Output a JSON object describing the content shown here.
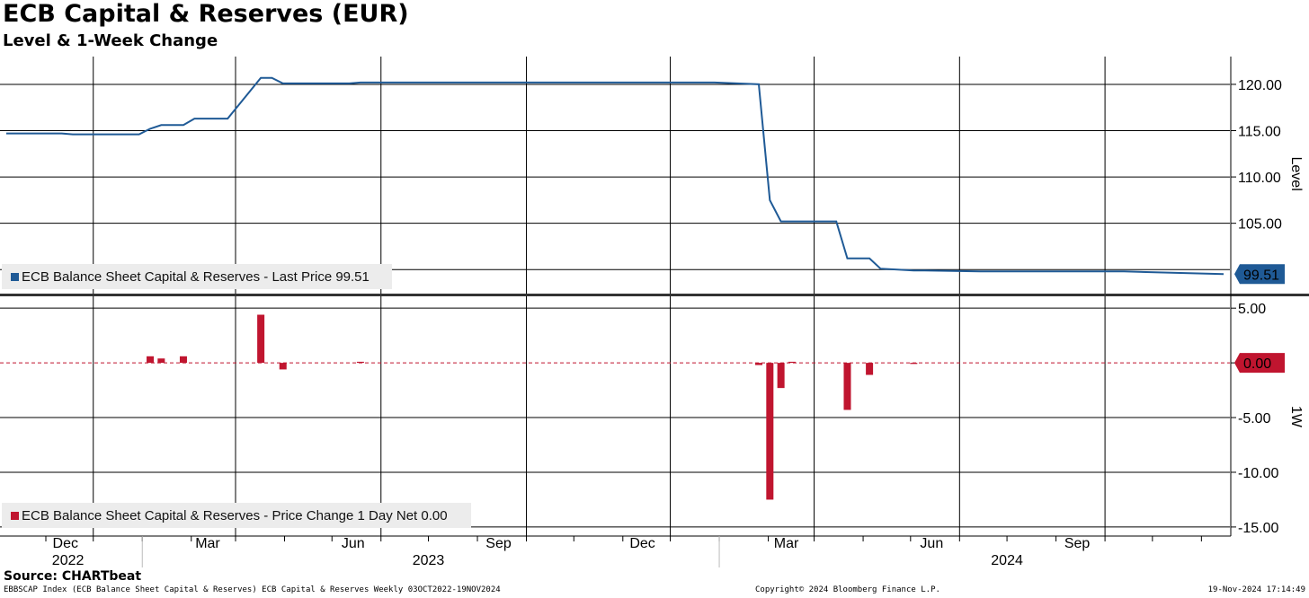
{
  "title": "ECB Capital & Reserves (EUR)",
  "subtitle": "Level & 1-Week Change",
  "source": "Source: CHARTbeat",
  "footer": {
    "left": "EBBSCAP Index (ECB Balance Sheet Capital & Reserves) ECB Capital & Reserves  Weekly 03OCT2022-19NOV2024",
    "center": "Copyright© 2024 Bloomberg Finance L.P.",
    "right": "19-Nov-2024 17:14:49"
  },
  "colors": {
    "level": "#1f5a96",
    "change": "#c0152f",
    "zero_line": "#c0152f"
  },
  "chart_data": [
    {
      "type": "line",
      "panel": "top",
      "ylabel": "Level",
      "ylim": [
        97.5,
        123
      ],
      "yticks": [
        105,
        110,
        115,
        120
      ],
      "ytick_labels": [
        "105.00",
        "110.00",
        "115.00",
        "120.00"
      ],
      "last_value_label": "99.51",
      "legend": "ECB Balance Sheet Capital & Reserves - Last Price 99.51",
      "series": [
        {
          "name": "ECB Balance Sheet Capital & Reserves - Last Price",
          "x": [
            "2022-10-07",
            "2022-11-11",
            "2022-11-18",
            "2022-12-30",
            "2023-01-06",
            "2023-01-13",
            "2023-01-27",
            "2023-02-03",
            "2023-02-17",
            "2023-02-24",
            "2023-03-17",
            "2023-03-24",
            "2023-03-31",
            "2023-05-12",
            "2023-05-19",
            "2023-12-29",
            "2024-01-26",
            "2024-02-02",
            "2024-02-09",
            "2024-02-16",
            "2024-03-15",
            "2024-03-22",
            "2024-04-05",
            "2024-04-12",
            "2024-05-03",
            "2024-05-10",
            "2024-06-14",
            "2024-07-12",
            "2024-09-13",
            "2024-11-15"
          ],
          "values": [
            114.7,
            114.7,
            114.6,
            114.6,
            115.2,
            115.6,
            115.6,
            116.3,
            116.3,
            116.3,
            120.7,
            120.7,
            120.1,
            120.1,
            120.2,
            120.2,
            120.0,
            107.5,
            105.2,
            105.2,
            105.2,
            101.2,
            101.2,
            100.1,
            99.9,
            99.9,
            99.8,
            99.8,
            99.8,
            99.51
          ]
        }
      ]
    },
    {
      "type": "bar",
      "panel": "bottom",
      "ylabel": "1W",
      "ylim": [
        -15.5,
        6
      ],
      "yticks": [
        -15,
        -10,
        -5,
        0,
        5
      ],
      "ytick_labels": [
        "-15.00",
        "-10.00",
        "-5.00",
        "",
        "5.00"
      ],
      "last_value_label": "0.00",
      "legend": "ECB Balance Sheet Capital & Reserves - Price Change 1 Day Net 0.00",
      "series": [
        {
          "name": "ECB Balance Sheet Capital & Reserves - Price Change 1 Day Net",
          "x": [
            "2023-01-06",
            "2023-01-13",
            "2023-01-27",
            "2023-03-17",
            "2023-03-31",
            "2023-05-19",
            "2024-01-26",
            "2024-02-02",
            "2024-02-09",
            "2024-02-16",
            "2024-03-22",
            "2024-04-05",
            "2024-05-03"
          ],
          "values": [
            0.6,
            0.4,
            0.6,
            4.4,
            -0.6,
            0.1,
            -0.2,
            -12.5,
            -2.3,
            0.1,
            -4.3,
            -1.1,
            -0.1
          ]
        }
      ]
    }
  ],
  "x_axis": {
    "months": [
      {
        "date": "2022-12-01",
        "label": "Dec"
      },
      {
        "date": "2023-03-01",
        "label": "Mar"
      },
      {
        "date": "2023-06-01",
        "label": "Jun"
      },
      {
        "date": "2023-09-01",
        "label": "Sep"
      },
      {
        "date": "2023-12-01",
        "label": "Dec"
      },
      {
        "date": "2024-03-01",
        "label": "Mar"
      },
      {
        "date": "2024-06-01",
        "label": "Jun"
      },
      {
        "date": "2024-09-01",
        "label": "Sep"
      }
    ],
    "years": [
      {
        "date": "2022-11-15",
        "label": "2022"
      },
      {
        "date": "2023-07-01",
        "label": "2023"
      },
      {
        "date": "2024-07-01",
        "label": "2024"
      }
    ]
  }
}
